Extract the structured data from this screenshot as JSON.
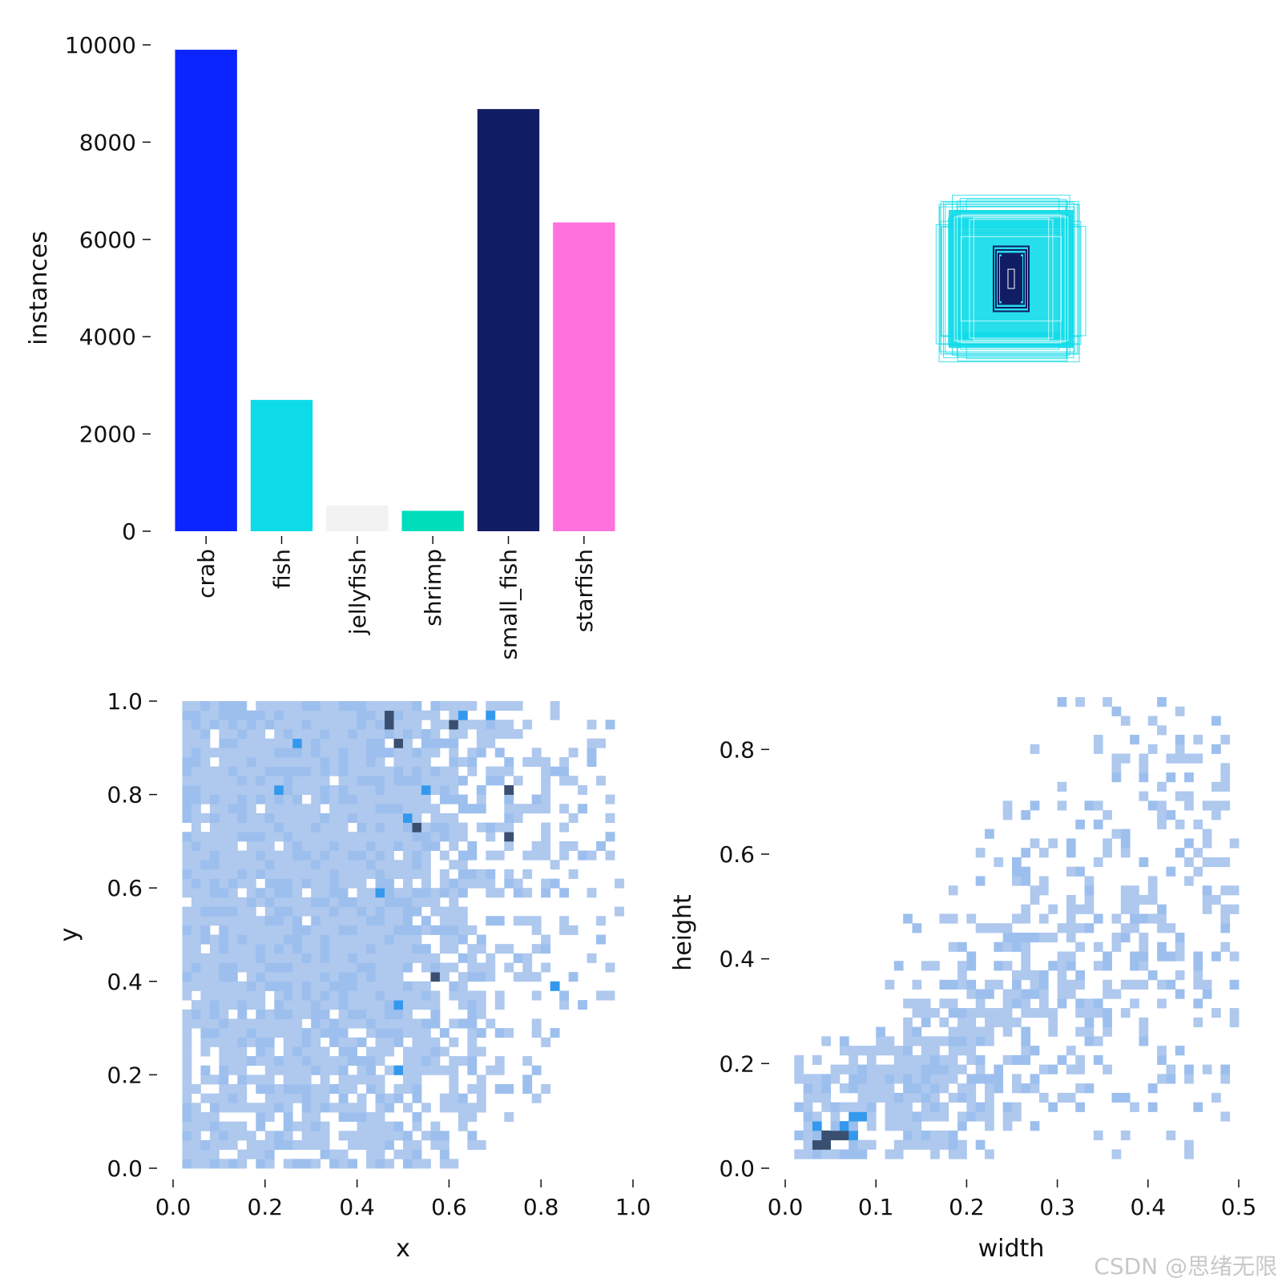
{
  "chart_data": [
    {
      "id": "class-counts",
      "type": "bar",
      "ylabel": "instances",
      "xlabel": "",
      "ylim": [
        0,
        10000
      ],
      "yticks": [
        0,
        2000,
        4000,
        6000,
        8000,
        10000
      ],
      "categories": [
        "crab",
        "fish",
        "jellyfish",
        "shrimp",
        "small_fish",
        "starfish"
      ],
      "values": [
        9900,
        2700,
        530,
        420,
        8680,
        6350
      ],
      "colors": [
        "#0a25ff",
        "#0edbe8",
        "#f2f2f2",
        "#00ddbb",
        "#111d63",
        "#ff72de"
      ]
    },
    {
      "id": "box-overlay",
      "type": "other",
      "description_colors": {
        "large_boxes": "#0edbe8",
        "small_boxes": "#111d63"
      },
      "box_count_large": 26,
      "box_count_small": 6
    },
    {
      "id": "xy-histogram",
      "type": "heatmap",
      "xlabel": "x",
      "ylabel": "y",
      "xlim": [
        0,
        1
      ],
      "ylim": [
        0,
        1
      ],
      "xticks": [
        "0.0",
        "0.2",
        "0.4",
        "0.6",
        "0.8",
        "1.0"
      ],
      "yticks": [
        "0.0",
        "0.2",
        "0.4",
        "0.6",
        "0.8",
        "1.0"
      ],
      "bins": 50,
      "palette": [
        "#aec8ee",
        "#9cbfee",
        "#3399ee",
        "#3a4f70"
      ],
      "hot_spots": [
        [
          0.46,
          0.96,
          3
        ],
        [
          0.47,
          0.94,
          3
        ],
        [
          0.48,
          0.9,
          3
        ],
        [
          0.53,
          0.73,
          3
        ],
        [
          0.57,
          0.41,
          3
        ],
        [
          0.61,
          0.95,
          3
        ],
        [
          0.72,
          0.71,
          3
        ],
        [
          0.72,
          0.8,
          3
        ],
        [
          0.63,
          0.96,
          2
        ],
        [
          0.55,
          0.81,
          2
        ],
        [
          0.51,
          0.75,
          2
        ],
        [
          0.44,
          0.59,
          2
        ],
        [
          0.49,
          0.34,
          2
        ],
        [
          0.48,
          0.2,
          2
        ],
        [
          0.82,
          0.38,
          2
        ],
        [
          0.68,
          0.96,
          2
        ],
        [
          0.22,
          0.81,
          2
        ],
        [
          0.27,
          0.9,
          2
        ]
      ]
    },
    {
      "id": "wh-histogram",
      "type": "heatmap",
      "xlabel": "width",
      "ylabel": "height",
      "xlim": [
        0,
        0.5
      ],
      "ylim": [
        0,
        0.9
      ],
      "xticks": [
        "0.0",
        "0.1",
        "0.2",
        "0.3",
        "0.4",
        "0.5"
      ],
      "yticks": [
        "0.0",
        "0.2",
        "0.4",
        "0.6",
        "0.8"
      ],
      "bins": 50,
      "palette": [
        "#aec8ee",
        "#9cbfee",
        "#3399ee",
        "#3a4f70"
      ],
      "hot_spots": [
        [
          0.03,
          0.05,
          3
        ],
        [
          0.04,
          0.06,
          3
        ],
        [
          0.05,
          0.07,
          3
        ],
        [
          0.06,
          0.06,
          3
        ],
        [
          0.04,
          0.04,
          3
        ],
        [
          0.06,
          0.08,
          2
        ],
        [
          0.07,
          0.07,
          2
        ],
        [
          0.08,
          0.09,
          2
        ],
        [
          0.07,
          0.1,
          2
        ],
        [
          0.03,
          0.08,
          2
        ],
        [
          0.09,
          0.11,
          1
        ],
        [
          0.05,
          0.11,
          1
        ]
      ]
    }
  ],
  "watermark": "CSDN @思绪无限"
}
